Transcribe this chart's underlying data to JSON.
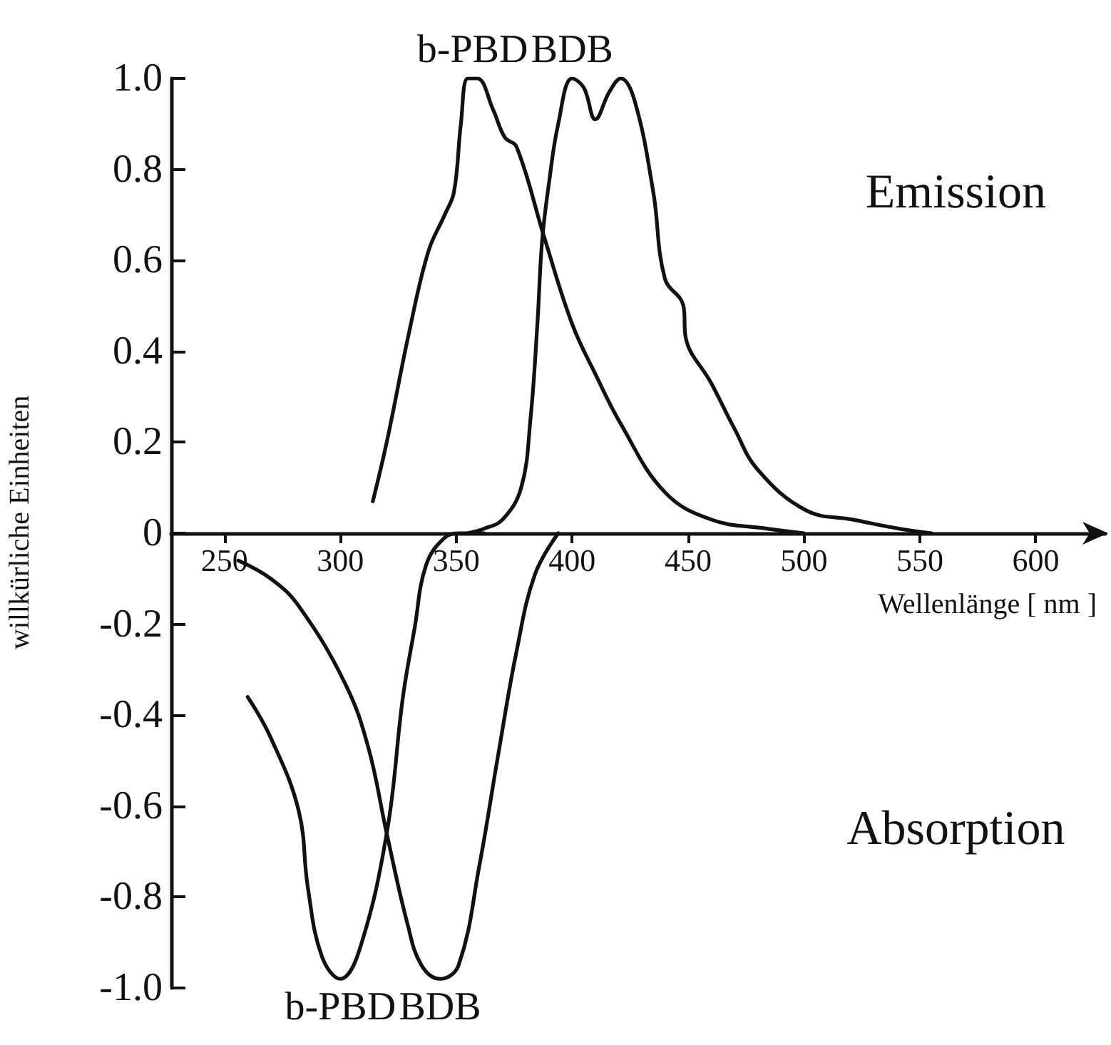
{
  "chart_data": {
    "type": "line",
    "xlabel": "Wellenlänge [ nm ]",
    "ylabel": "willkürliche Einheiten",
    "xlim": [
      227,
      630
    ],
    "ylim": [
      -1,
      1
    ],
    "xticks": [
      250,
      300,
      350,
      400,
      450,
      500,
      550,
      600
    ],
    "yticks": [
      {
        "value": 1,
        "label": "1.0"
      },
      0.8,
      0.6,
      0.4,
      0.2,
      0,
      -0.2,
      -0.4,
      -0.6,
      -0.8,
      {
        "value": -1,
        "label": "-1.0"
      }
    ],
    "grid": false,
    "marker": "none",
    "line_style": "solid",
    "series": [
      {
        "color": "#111111",
        "x": [
          314,
          320,
          330,
          338,
          345,
          349,
          352,
          355,
          359,
          366,
          371,
          376,
          388,
          400,
          410,
          421,
          440,
          460,
          484,
          500
        ],
        "values": [
          0.07,
          0.2,
          0.45,
          0.62,
          0.7,
          0.75,
          0.9,
          1.0,
          1.0,
          0.93,
          0.87,
          0.85,
          0.65,
          0.46,
          0.35,
          0.24,
          0.09,
          0.03,
          0.01,
          0
        ]
      },
      {
        "color": "#111111",
        "x": [
          355,
          362,
          370,
          378,
          382,
          385,
          387,
          390,
          394,
          400,
          405,
          410,
          416,
          421,
          427,
          435,
          440,
          448,
          449,
          460,
          470,
          480,
          501,
          521,
          541,
          555
        ],
        "values": [
          0,
          0.01,
          0.03,
          0.1,
          0.25,
          0.46,
          0.64,
          0.77,
          0.9,
          1.0,
          0.98,
          0.91,
          0.97,
          1.0,
          0.95,
          0.75,
          0.56,
          0.5,
          0.43,
          0.33,
          0.23,
          0.14,
          0.05,
          0.03,
          0.01,
          0
        ]
      },
      {
        "color": "#111111",
        "x": [
          260,
          270,
          282,
          286,
          292,
          300,
          308,
          320,
          327,
          332,
          337,
          345,
          352,
          362
        ],
        "values": [
          -0.36,
          -0.45,
          -0.61,
          -0.78,
          -0.93,
          -0.98,
          -0.92,
          -0.66,
          -0.36,
          -0.21,
          -0.07,
          -0.01,
          0,
          0
        ]
      },
      {
        "color": "#111111",
        "x": [
          256,
          270,
          282,
          302,
          312,
          320,
          329,
          335,
          343,
          351,
          360,
          368,
          376,
          384,
          394
        ],
        "values": [
          -0.06,
          -0.1,
          -0.16,
          -0.33,
          -0.47,
          -0.66,
          -0.86,
          -0.95,
          -0.98,
          -0.95,
          -0.73,
          -0.49,
          -0.26,
          -0.09,
          0
        ]
      }
    ],
    "annotations": [
      {
        "text": "b-PBD",
        "x": 357,
        "y": 1.0
      },
      {
        "text": "BDB",
        "x": 400,
        "y": 1.0
      },
      {
        "text": "b-PBD",
        "x": 300,
        "y": -0.98
      },
      {
        "text": "BDB",
        "x": 343,
        "y": -0.98
      },
      "Emission",
      "Absorption"
    ]
  }
}
